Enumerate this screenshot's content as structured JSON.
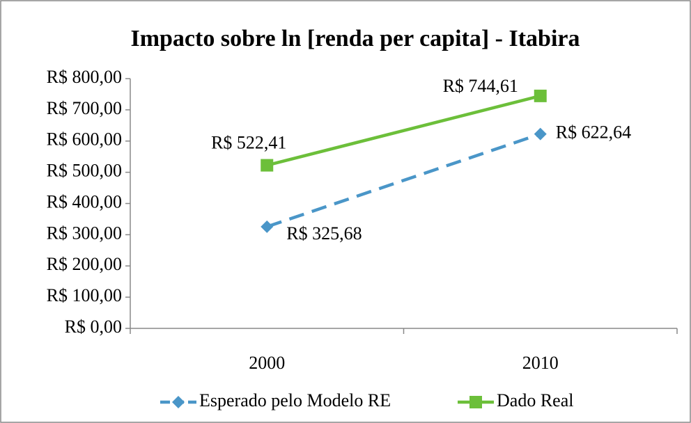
{
  "chart_data": {
    "type": "line",
    "title": "Impacto sobre ln [renda per capita] - Itabira",
    "categories": [
      "2000",
      "2010"
    ],
    "series": [
      {
        "name": "Esperado pelo Modelo RE",
        "color": "#4a96c8",
        "dash": true,
        "marker": "diamond",
        "values": [
          325.68,
          622.64
        ],
        "value_labels": [
          "R$ 325,68",
          "R$ 622,64"
        ]
      },
      {
        "name": "Dado Real",
        "color": "#6cbf3a",
        "dash": false,
        "marker": "square",
        "values": [
          522.41,
          744.61
        ],
        "value_labels": [
          "R$ 522,41",
          "R$ 744,61"
        ]
      }
    ],
    "ylim": [
      0,
      800
    ],
    "yticks": [
      {
        "value": 0,
        "label": "R$ 0,00"
      },
      {
        "value": 100,
        "label": "R$ 100,00"
      },
      {
        "value": 200,
        "label": "R$ 200,00"
      },
      {
        "value": 300,
        "label": "R$ 300,00"
      },
      {
        "value": 400,
        "label": "R$ 400,00"
      },
      {
        "value": 500,
        "label": "R$ 500,00"
      },
      {
        "value": 600,
        "label": "R$ 600,00"
      },
      {
        "value": 700,
        "label": "R$ 700,00"
      },
      {
        "value": 800,
        "label": "R$ 800,00"
      }
    ],
    "legend": "bottom"
  }
}
